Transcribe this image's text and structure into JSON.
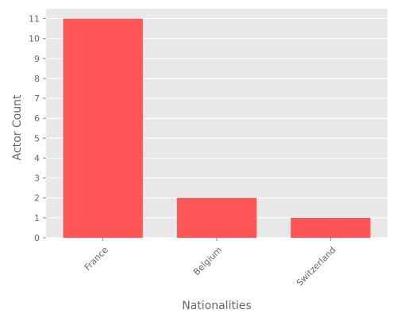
{
  "chart_data": {
    "type": "bar",
    "categories": [
      "France",
      "Belgium",
      "Switzerland"
    ],
    "values": [
      11,
      2,
      1
    ],
    "xlabel": "Nationalities",
    "ylabel": "Actor Count",
    "ylim": [
      0,
      11.5
    ],
    "yticks": [
      "0",
      "1",
      "2",
      "3",
      "4",
      "5",
      "6",
      "7",
      "8",
      "9",
      "10",
      "11"
    ],
    "grid": true,
    "legend": "none"
  },
  "colors": {
    "bar": "#ff5555",
    "plot_background": "#e8e8e8",
    "grid": "#ffffff",
    "text": "#666666"
  }
}
